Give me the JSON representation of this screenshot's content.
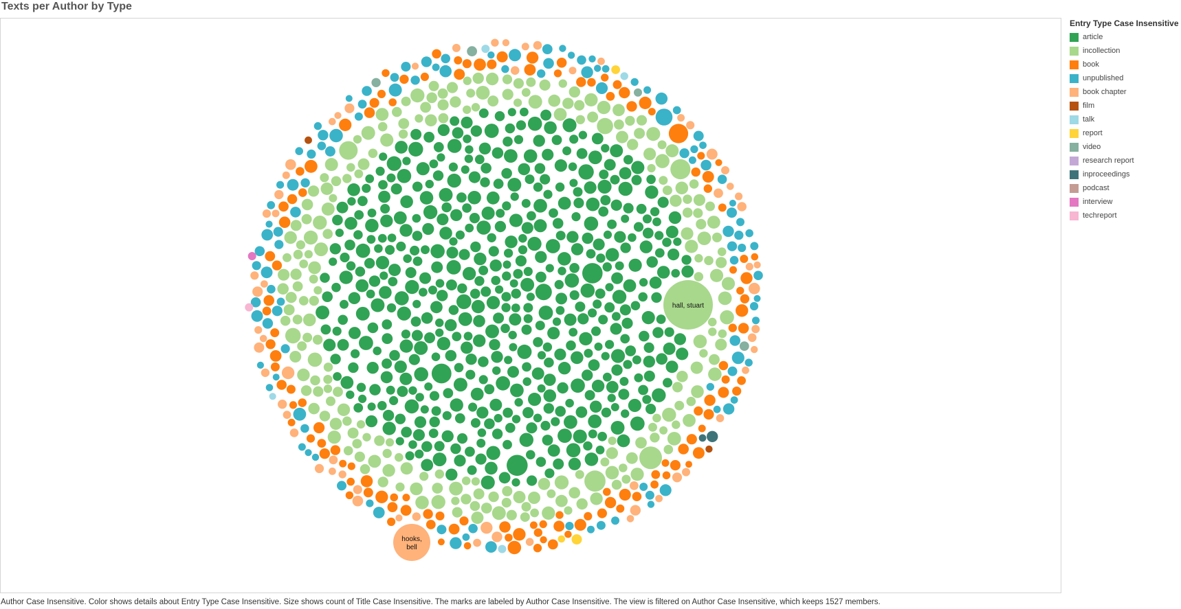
{
  "title": "Texts per Author by Type",
  "caption": "Author Case Insensitive.  Color shows details about Entry Type Case Insensitive.  Size shows count of Title Case Insensitive.  The marks are labeled by Author Case Insensitive. The view is filtered on Author Case Insensitive, which keeps 1527 members.",
  "legend": {
    "title": "Entry Type Case Insensitive",
    "items": [
      {
        "label": "article",
        "color": "#31a354"
      },
      {
        "label": "incollection",
        "color": "#a8d88c"
      },
      {
        "label": "book",
        "color": "#ff7f0e"
      },
      {
        "label": "unpublished",
        "color": "#3ab3c9"
      },
      {
        "label": "book chapter",
        "color": "#ffb27a"
      },
      {
        "label": "film",
        "color": "#b5520f"
      },
      {
        "label": "talk",
        "color": "#9ed9e6"
      },
      {
        "label": "report",
        "color": "#ffd439"
      },
      {
        "label": "video",
        "color": "#86b0a0"
      },
      {
        "label": "research report",
        "color": "#c3a8d6"
      },
      {
        "label": "inproceedings",
        "color": "#3e7479"
      },
      {
        "label": "podcast",
        "color": "#c49c94"
      },
      {
        "label": "interview",
        "color": "#e377c2"
      },
      {
        "label": "techreport",
        "color": "#f7b6d2"
      }
    ]
  },
  "chart_data": {
    "type": "bubble",
    "title": "Texts per Author by Type",
    "size_measure": "count of Title Case Insensitive",
    "color_measure": "Entry Type Case Insensitive",
    "label_measure": "Author Case Insensitive",
    "member_count": 1527,
    "labeled_marks": [
      {
        "label": "hall, stuart",
        "type": "incollection",
        "size_rank": 1
      },
      {
        "label": "hooks, bell",
        "type": "book chapter",
        "size_rank": 2
      }
    ],
    "type_order_center_out": [
      "article",
      "incollection",
      "book",
      "unpublished",
      "book chapter",
      "film",
      "talk",
      "report",
      "video",
      "research report",
      "inproceedings",
      "podcast",
      "interview",
      "techreport"
    ]
  }
}
